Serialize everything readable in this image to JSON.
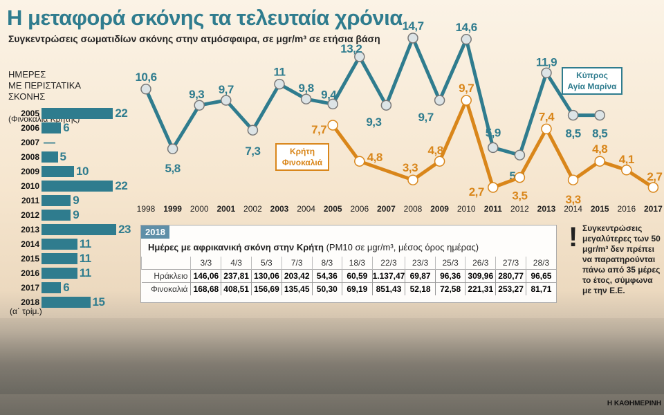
{
  "title": "Η μεταφορά σκόνης τα τελευταία χρόνια",
  "subtitle": "Συγκεντρώσεις σωματιδίων σκόνης στην ατμόσφαιρα, σε μgr/m³ σε ετήσια βάση",
  "credit": "Η ΚΑΘΗΜΕΡΙΝΗ",
  "colors": {
    "cyprus": "#2f7c8e",
    "crete": "#d9861a"
  },
  "chart_data": [
    {
      "type": "line",
      "title": "Συγκεντρώσεις σωματιδίων σκόνης στην ατμόσφαιρα, σε μgr/m³ σε ετήσια βάση",
      "x": [
        "1998",
        "1999",
        "2000",
        "2001",
        "2002",
        "2003",
        "2004",
        "2005",
        "2006",
        "2007",
        "2008",
        "2009",
        "2010",
        "2011",
        "2012",
        "2013",
        "2014",
        "2015",
        "2016",
        "2017"
      ],
      "bold_years": [
        "1999",
        "2001",
        "2003",
        "2005",
        "2007",
        "2009",
        "2011",
        "2013",
        "2015",
        "2017"
      ],
      "series": [
        {
          "name": "Κύπρος Αγία Μαρίνα",
          "name_line1": "Κύπρος",
          "name_line2": "Αγία Μαρίνα",
          "values": [
            10.6,
            5.8,
            9.3,
            9.7,
            7.3,
            11,
            9.8,
            9.4,
            13.2,
            9.3,
            14.7,
            9.7,
            14.6,
            5.9,
            5.3,
            11.9,
            8.5,
            8.5,
            null,
            null
          ],
          "labels": [
            "10,6",
            "5,8",
            "9,3",
            "9,7",
            "7,3",
            "11",
            "9,8",
            "9,4",
            "13,2",
            "9,3",
            "14,7",
            "9,7",
            "14,6",
            "5,9",
            "5,3",
            "11,9",
            "8,5",
            "8,5",
            null,
            null
          ]
        },
        {
          "name": "Κρήτη Φινοκαλιά",
          "name_line1": "Κρήτη",
          "name_line2": "Φινοκαλιά",
          "values": [
            null,
            null,
            null,
            null,
            null,
            null,
            null,
            7.7,
            4.8,
            null,
            3.3,
            4.8,
            9.7,
            2.7,
            3.5,
            7.4,
            3.3,
            4.8,
            4.1,
            2.7
          ],
          "labels": [
            null,
            null,
            null,
            null,
            null,
            null,
            null,
            "7,7",
            "4,8",
            null,
            "3,3",
            "4,8",
            "9,7",
            "2,7",
            "3,5",
            "7,4",
            "3,3",
            "4,8",
            "4,1",
            "2,7"
          ]
        }
      ]
    },
    {
      "type": "bar",
      "title": "ΗΜΕΡΕΣ ΜΕ ΠΕΡΙΣΤΑΤΙΚΑ ΣΚΟΝΗΣ",
      "heading": "ΗΜΕΡΕΣ\nΜΕ ΠΕΡΙΣΤΑΤΙΚΑ\nΣΚΟΝΗΣ",
      "subheading": "(Φινοκαλιά Κρήτης)",
      "categories": [
        "2005",
        "2006",
        "2007",
        "2008",
        "2009",
        "2010",
        "2011",
        "2012",
        "2013",
        "2014",
        "2015",
        "2016",
        "2017",
        "2018"
      ],
      "values": [
        22,
        6,
        0,
        5,
        10,
        22,
        9,
        9,
        23,
        11,
        11,
        11,
        6,
        15
      ],
      "labels": [
        "22",
        "6",
        "—",
        "5",
        "10",
        "22",
        "9",
        "9",
        "23",
        "11",
        "11",
        "11",
        "6",
        "15"
      ],
      "note": "(α΄ τρίμ.)"
    },
    {
      "type": "table",
      "year": "2018",
      "title_bold": "Ημέρες με αφρικανική σκόνη στην Κρήτη",
      "title_rest": " (PM10 σε μgr/m³, μέσος όρος ημέρας)",
      "columns": [
        "3/3",
        "4/3",
        "5/3",
        "7/3",
        "8/3",
        "18/3",
        "22/3",
        "23/3",
        "25/3",
        "26/3",
        "27/3",
        "28/3"
      ],
      "rows": [
        {
          "name": "Ηράκλειο",
          "values": [
            "146,06",
            "237,81",
            "130,06",
            "203,42",
            "54,36",
            "60,59",
            "1.137,47",
            "69,87",
            "96,36",
            "309,96",
            "280,77",
            "96,65"
          ]
        },
        {
          "name": "Φινοκαλιά",
          "values": [
            "168,68",
            "408,51",
            "156,69",
            "135,45",
            "50,30",
            "69,19",
            "851,43",
            "52,18",
            "72,58",
            "221,31",
            "253,27",
            "81,71"
          ]
        }
      ]
    }
  ],
  "note": {
    "mark": "!",
    "text": "Συγκεντρώσεις μεγαλύτερες των 50 μgr/m³ δεν πρέπει να παρατηρούνται πάνω από 35 μέρες το έτος, σύμφωνα με την Ε.Ε."
  }
}
